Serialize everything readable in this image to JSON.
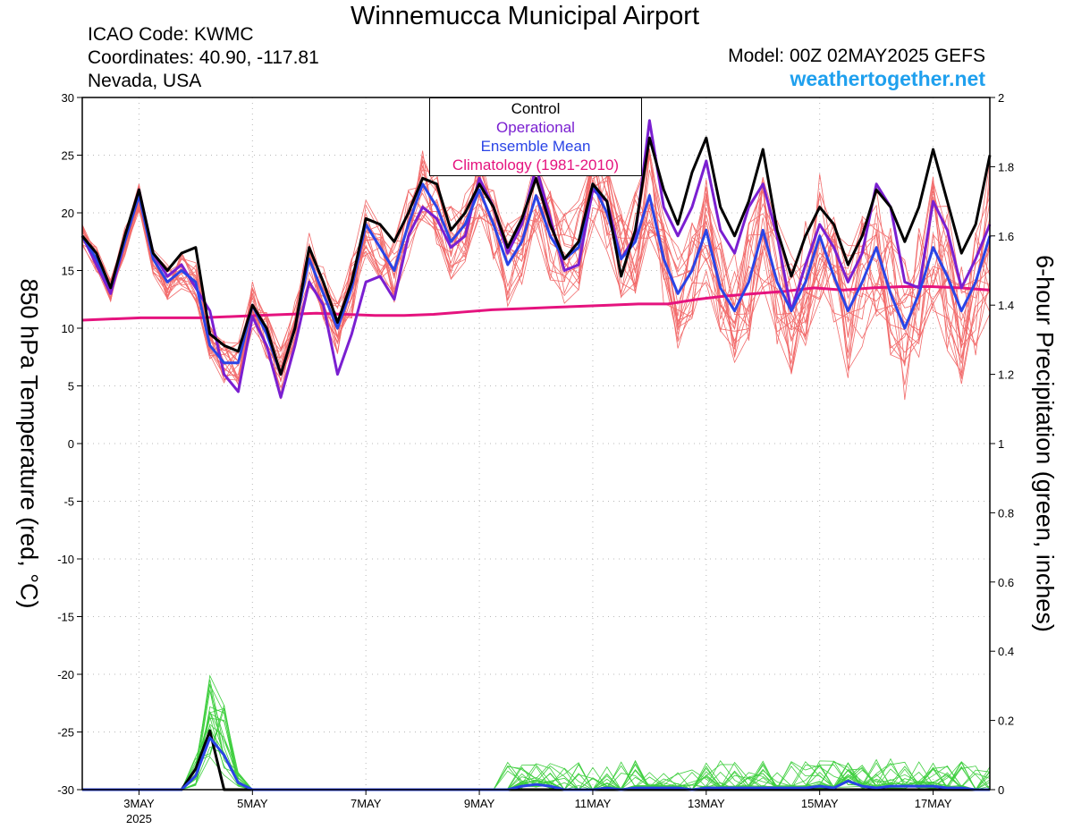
{
  "header": {
    "title": "Winnemucca Municipal Airport",
    "icao": "ICAO Code: KWMC",
    "coords": "Coordinates: 40.90, -117.81",
    "region": "Nevada, USA",
    "model": "Model: 00Z 02MAY2025 GEFS",
    "site": "weathertogether.net"
  },
  "colors": {
    "control": "#000000",
    "operational": "#7a1fd1",
    "ensemble_mean": "#2a44e6",
    "climatology": "#e5137e",
    "members_temp": "#f26b6b",
    "members_precip": "#3fcf3f"
  },
  "chart_data": {
    "type": "line",
    "title": "Winnemucca Municipal Airport",
    "ylabel": "850 hPa Temperature (red, °C)",
    "y2label": "6-hour Precipitation (green, inches)",
    "ylim": [
      -30,
      30
    ],
    "y2lim": [
      0,
      2
    ],
    "yticks": [
      "30",
      "25",
      "20",
      "15",
      "10",
      "5",
      "0",
      "-5",
      "-10",
      "-15",
      "-20",
      "-25",
      "-30"
    ],
    "y2ticks": [
      "2",
      "1.8",
      "1.6",
      "1.4",
      "1.2",
      "1",
      "0.8",
      "0.6",
      "0.4",
      "0.2",
      "0"
    ],
    "x_start": "2025-05-02 00Z",
    "x_step_hours": 6,
    "xticks": [
      {
        "label": "3MAY",
        "x": 4
      },
      {
        "label": "5MAY",
        "x": 12
      },
      {
        "label": "7MAY",
        "x": 20
      },
      {
        "label": "9MAY",
        "x": 28
      },
      {
        "label": "11MAY",
        "x": 36
      },
      {
        "label": "13MAY",
        "x": 44
      },
      {
        "label": "15MAY",
        "x": 52
      },
      {
        "label": "17MAY",
        "x": 60
      }
    ],
    "year_label": "2025",
    "legend": [
      "Control",
      "Operational",
      "Ensemble Mean",
      "Climatology (1981-2010)"
    ],
    "series": [
      {
        "name": "Control",
        "values": [
          18,
          16.5,
          13.5,
          18,
          22,
          16.5,
          15,
          16.5,
          17,
          9.5,
          8.5,
          8,
          12,
          10,
          6,
          10,
          17,
          14,
          10.5,
          14,
          19.5,
          19,
          17.5,
          20,
          23,
          22.5,
          18.5,
          20,
          22.5,
          20.5,
          17,
          19.5,
          23,
          19,
          16,
          17.5,
          22.5,
          21,
          14.5,
          18.5,
          26.5,
          22,
          19,
          23.5,
          26.5,
          20.5,
          18,
          21,
          25.5,
          18.5,
          14.5,
          18,
          20.5,
          19,
          15.5,
          18,
          22,
          20.5,
          17.5,
          20.5,
          25.5,
          21,
          16.5,
          19,
          25
        ]
      },
      {
        "name": "Operational",
        "values": [
          18,
          15.5,
          13,
          17.5,
          22,
          16.5,
          14.5,
          15.5,
          13.5,
          11.5,
          6,
          4.5,
          11,
          8.5,
          4,
          8.5,
          14,
          12,
          6,
          9.5,
          14,
          14.5,
          12.5,
          18,
          20.5,
          19.5,
          17,
          18,
          23,
          20.5,
          16.5,
          19,
          24,
          19.5,
          15,
          15.5,
          22,
          21,
          16,
          18,
          28,
          20.5,
          18,
          20.5,
          24.5,
          18.5,
          16.5,
          20.5,
          22.5,
          18,
          11.5,
          15.5,
          19,
          17,
          14,
          16.5,
          22.5,
          20.5,
          14,
          13.5,
          21,
          18.5,
          13.5,
          16,
          19
        ]
      },
      {
        "name": "Ensemble Mean",
        "values": [
          18,
          16,
          13.5,
          17.5,
          21.5,
          16,
          14,
          15,
          14,
          8.5,
          7,
          7,
          12,
          9.5,
          6,
          10,
          16,
          13,
          10,
          13.5,
          19,
          17,
          15,
          19,
          22.5,
          20.5,
          17.5,
          19,
          22,
          19,
          15.5,
          17.5,
          21.5,
          18,
          16,
          17,
          22.5,
          20,
          16,
          17.5,
          21.5,
          16,
          13,
          15,
          18.5,
          13.5,
          11.5,
          14,
          18.5,
          14,
          11.5,
          14,
          18,
          14.5,
          11.5,
          14,
          17,
          13,
          10,
          13,
          17,
          14.5,
          11.5,
          14,
          18
        ]
      },
      {
        "name": "Climatology (1981-2010)",
        "values": [
          10.7,
          10.8,
          10.9,
          10.9,
          10.9,
          11,
          11.1,
          11.2,
          11.3,
          11.2,
          11.1,
          11.1,
          11.2,
          11.4,
          11.6,
          11.7,
          11.8,
          11.9,
          12.0,
          12.1,
          12.1,
          12.5,
          12.8,
          13.0,
          13.2,
          13.5,
          13.3,
          13.5,
          13.6,
          13.6,
          13.5,
          13.3
        ]
      }
    ],
    "precip_series": [
      {
        "name": "Control",
        "values": [
          0,
          0,
          0,
          0,
          0,
          0,
          0,
          0,
          0.06,
          0.17,
          0,
          0,
          0,
          0,
          0,
          0,
          0,
          0,
          0,
          0,
          0,
          0,
          0,
          0,
          0,
          0,
          0,
          0,
          0,
          0,
          0,
          0,
          0,
          0,
          0,
          0,
          0,
          0,
          0,
          0,
          0,
          0,
          0,
          0,
          0,
          0,
          0,
          0,
          0,
          0,
          0,
          0,
          0,
          0,
          0,
          0,
          0,
          0,
          0,
          0,
          0,
          0,
          0,
          0,
          0
        ]
      },
      {
        "name": "Ensemble Mean",
        "values": [
          0,
          0,
          0,
          0,
          0,
          0,
          0,
          0,
          0.04,
          0.15,
          0.1,
          0.02,
          0,
          0,
          0,
          0,
          0,
          0,
          0,
          0,
          0,
          0,
          0,
          0,
          0,
          0,
          0,
          0,
          0,
          0,
          0,
          0.01,
          0.015,
          0.01,
          0,
          0,
          0,
          0.005,
          0,
          0.005,
          0.005,
          0.005,
          0.005,
          0,
          0.005,
          0.005,
          0.005,
          0.005,
          0.005,
          0.005,
          0.005,
          0.005,
          0.01,
          0.005,
          0.025,
          0.01,
          0.005,
          0.01,
          0.01,
          0.01,
          0.01,
          0.005,
          0.005,
          0,
          0
        ]
      }
    ]
  }
}
